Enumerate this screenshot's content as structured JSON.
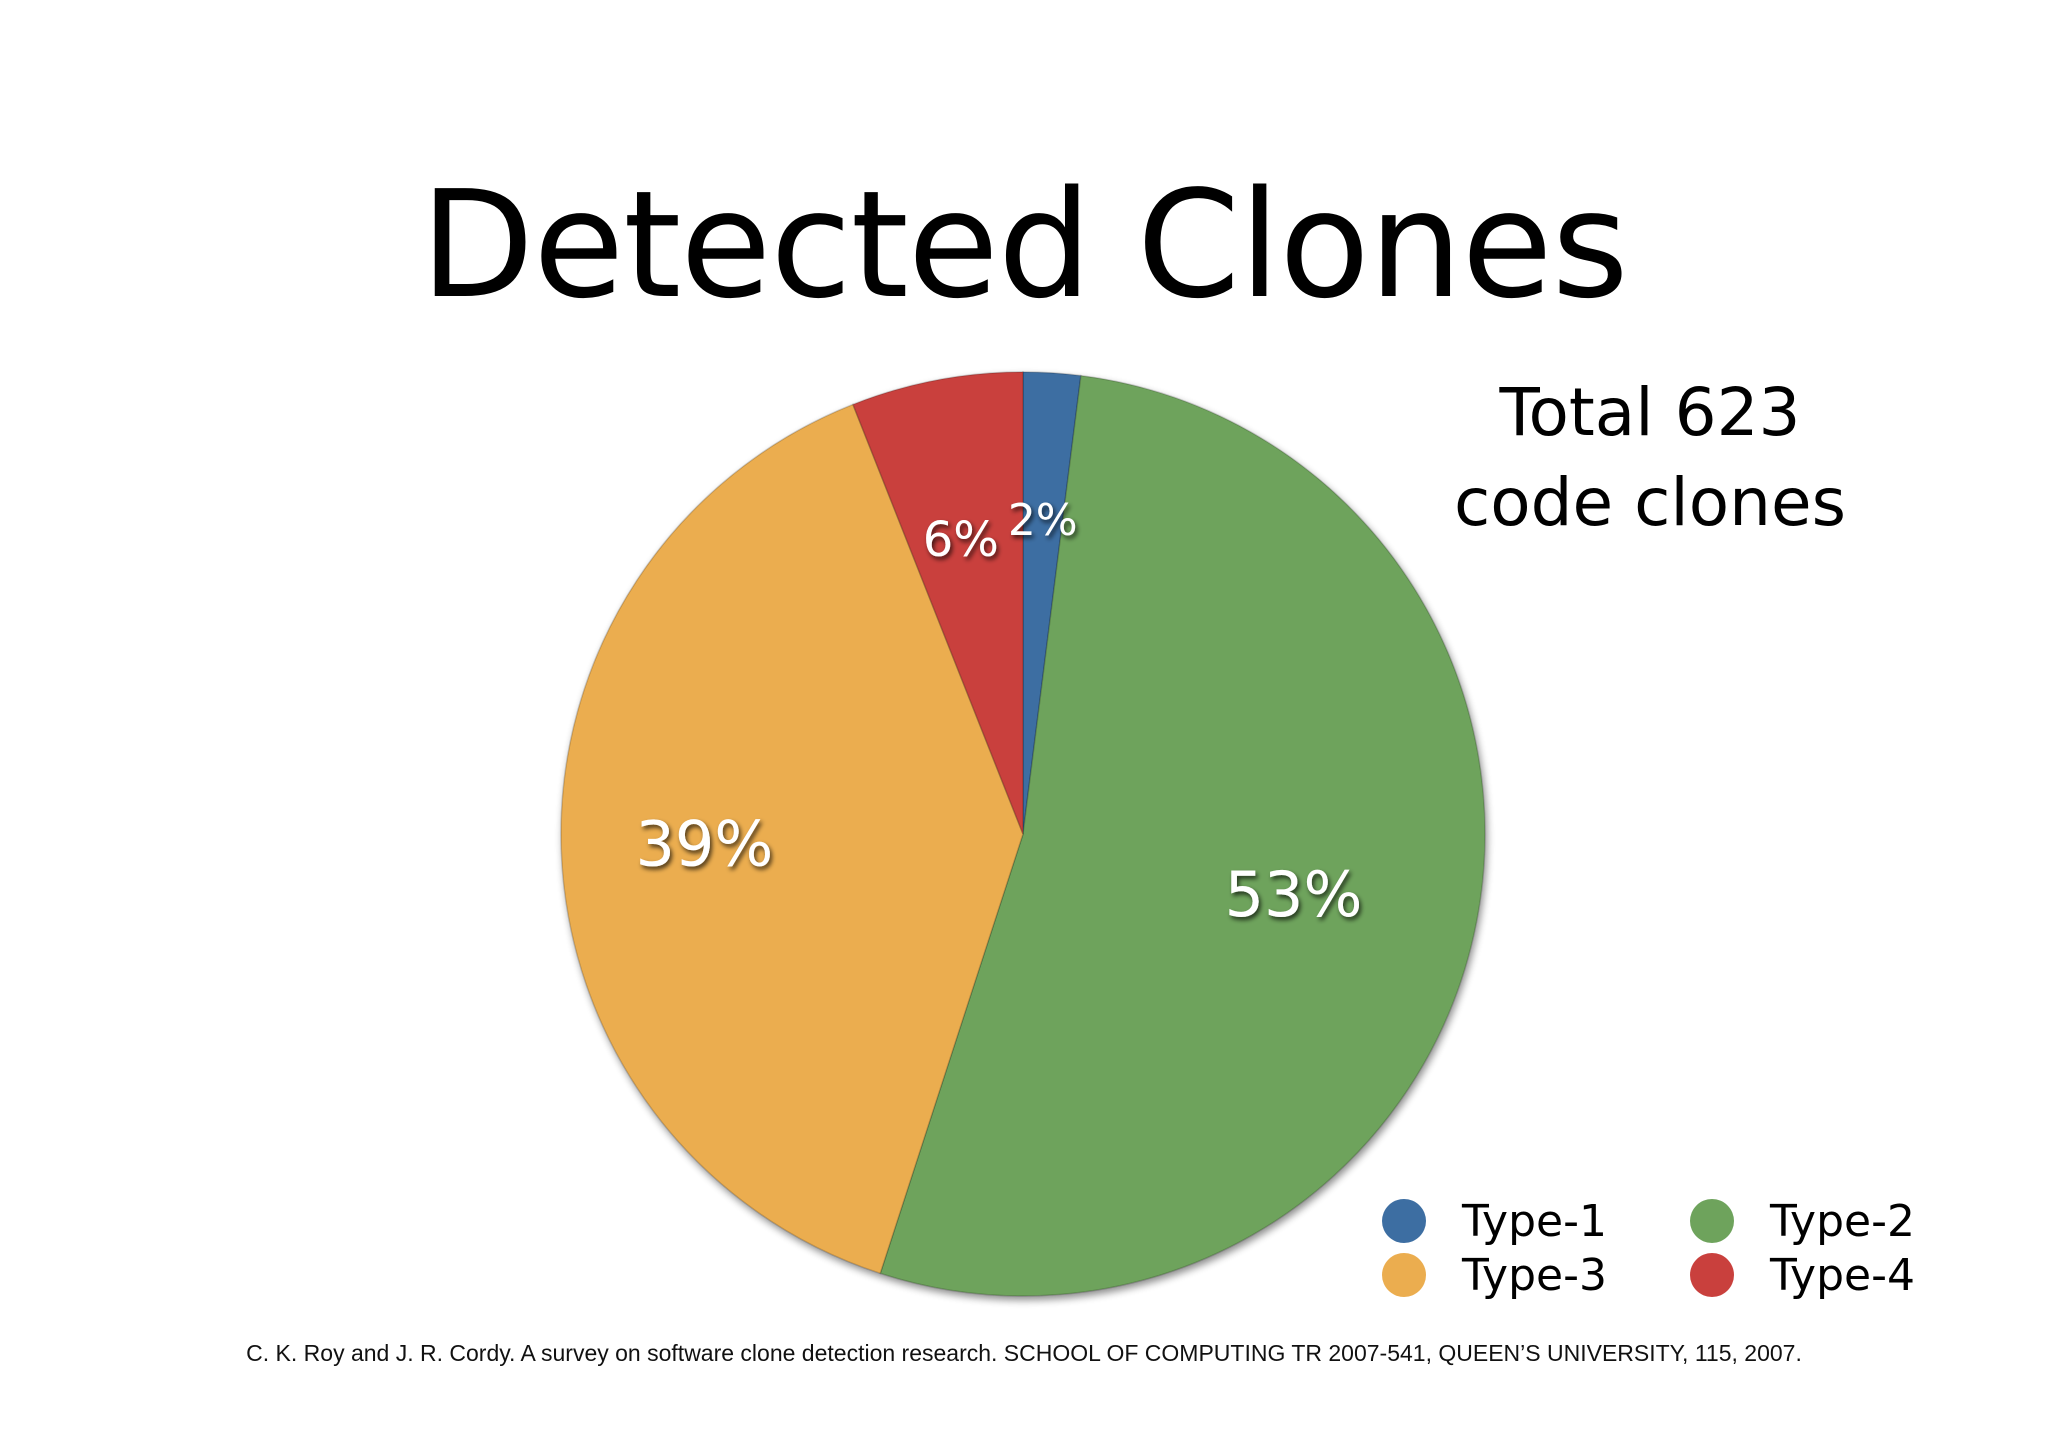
{
  "chart_data": {
    "type": "pie",
    "title": "Detected Clones",
    "note_lines": [
      "Total 623",
      "code clones"
    ],
    "slices": [
      {
        "name": "Type-1",
        "value": 2,
        "label": "2%",
        "color": "#3d6ea2"
      },
      {
        "name": "Type-2",
        "value": 53,
        "label": "53%",
        "color": "#6ea35c"
      },
      {
        "name": "Type-3",
        "value": 39,
        "label": "39%",
        "color": "#ebad4f"
      },
      {
        "name": "Type-4",
        "value": 6,
        "label": "6%",
        "color": "#c9403d"
      }
    ],
    "slice_order": "clockwise from top",
    "legend_placement": "bottom-right",
    "legend_columns": 2
  },
  "citation": "C. K. Roy and J. R. Cordy. A survey on software clone detection research. SCHOOL OF COMPUTING TR 2007-541, QUEEN’S UNIVERSITY, 115, 2007."
}
